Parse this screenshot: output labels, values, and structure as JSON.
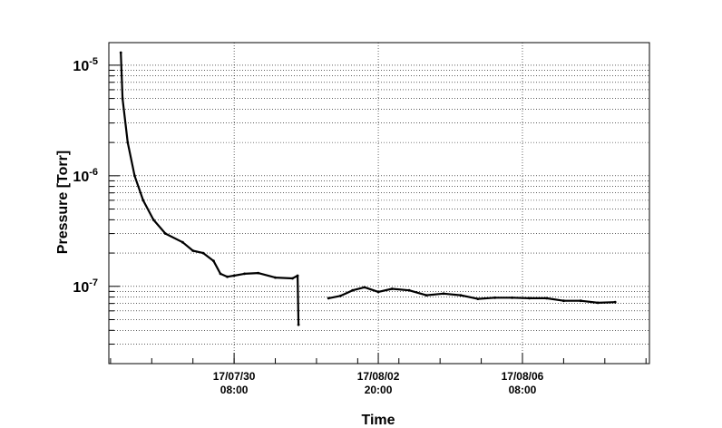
{
  "chart_data": {
    "type": "scatter",
    "title": "",
    "xlabel": "Time",
    "ylabel": "Pressure [Torr]",
    "yscale": "log",
    "ylim": [
      2e-08,
      1.6e-05
    ],
    "xlim": [
      "2017-07-27 07:00",
      "2017-08-09 10:00"
    ],
    "grid": true,
    "legend": "none",
    "x_ticks": [
      {
        "value": "2017-07-30 08:00",
        "line1": "17/07/30",
        "line2": "08:00"
      },
      {
        "value": "2017-08-02 20:00",
        "line1": "17/08/02",
        "line2": "20:00"
      },
      {
        "value": "2017-08-06 08:00",
        "line1": "17/08/06",
        "line2": "08:00"
      }
    ],
    "y_ticks": [
      {
        "value": 1e-07,
        "base": "10",
        "exp": "-7"
      },
      {
        "value": 1e-06,
        "base": "10",
        "exp": "-6"
      },
      {
        "value": 1e-05,
        "base": "10",
        "exp": "-5"
      }
    ],
    "series": [
      {
        "color": "#000000",
        "x": [
          "2017-07-27 14:00",
          "2017-07-27 15:00",
          "2017-07-27 18:00",
          "2017-07-27 22:00",
          "2017-07-28 03:00",
          "2017-07-28 09:00",
          "2017-07-28 16:00",
          "2017-07-29 02:00",
          "2017-07-29 08:00",
          "2017-07-29 14:00",
          "2017-07-29 20:00",
          "2017-07-30 00:00",
          "2017-07-30 04:00",
          "2017-07-30 08:00",
          "2017-07-30 14:00",
          "2017-07-30 22:00",
          "2017-07-31 08:00",
          "2017-07-31 18:00",
          "2017-07-31 21:00",
          "2017-07-31 21:30"
        ],
        "y": [
          1.3e-05,
          5e-06,
          2e-06,
          1e-06,
          6e-07,
          4e-07,
          3e-07,
          2.5e-07,
          2.1e-07,
          2e-07,
          1.7e-07,
          1.3e-07,
          1.22e-07,
          1.25e-07,
          1.3e-07,
          1.32e-07,
          1.2e-07,
          1.18e-07,
          1.25e-07,
          4.5e-08
        ]
      },
      {
        "color": "#000000",
        "x": [
          "2017-08-01 15:00",
          "2017-08-01 22:00",
          "2017-08-02 05:00",
          "2017-08-02 12:00",
          "2017-08-02 20:00",
          "2017-08-03 04:00",
          "2017-08-03 14:00",
          "2017-08-04 00:00",
          "2017-08-04 10:00",
          "2017-08-04 20:00",
          "2017-08-05 06:00",
          "2017-08-05 16:00",
          "2017-08-06 02:00",
          "2017-08-06 12:00",
          "2017-08-06 22:00",
          "2017-08-07 08:00",
          "2017-08-07 18:00",
          "2017-08-08 04:00",
          "2017-08-08 14:00"
        ],
        "y": [
          7.8e-08,
          8.2e-08,
          9.2e-08,
          9.8e-08,
          8.9e-08,
          9.5e-08,
          9.2e-08,
          8.3e-08,
          8.6e-08,
          8.3e-08,
          7.7e-08,
          7.9e-08,
          7.9e-08,
          7.8e-08,
          7.8e-08,
          7.4e-08,
          7.4e-08,
          7.1e-08,
          7.2e-08
        ]
      }
    ]
  }
}
